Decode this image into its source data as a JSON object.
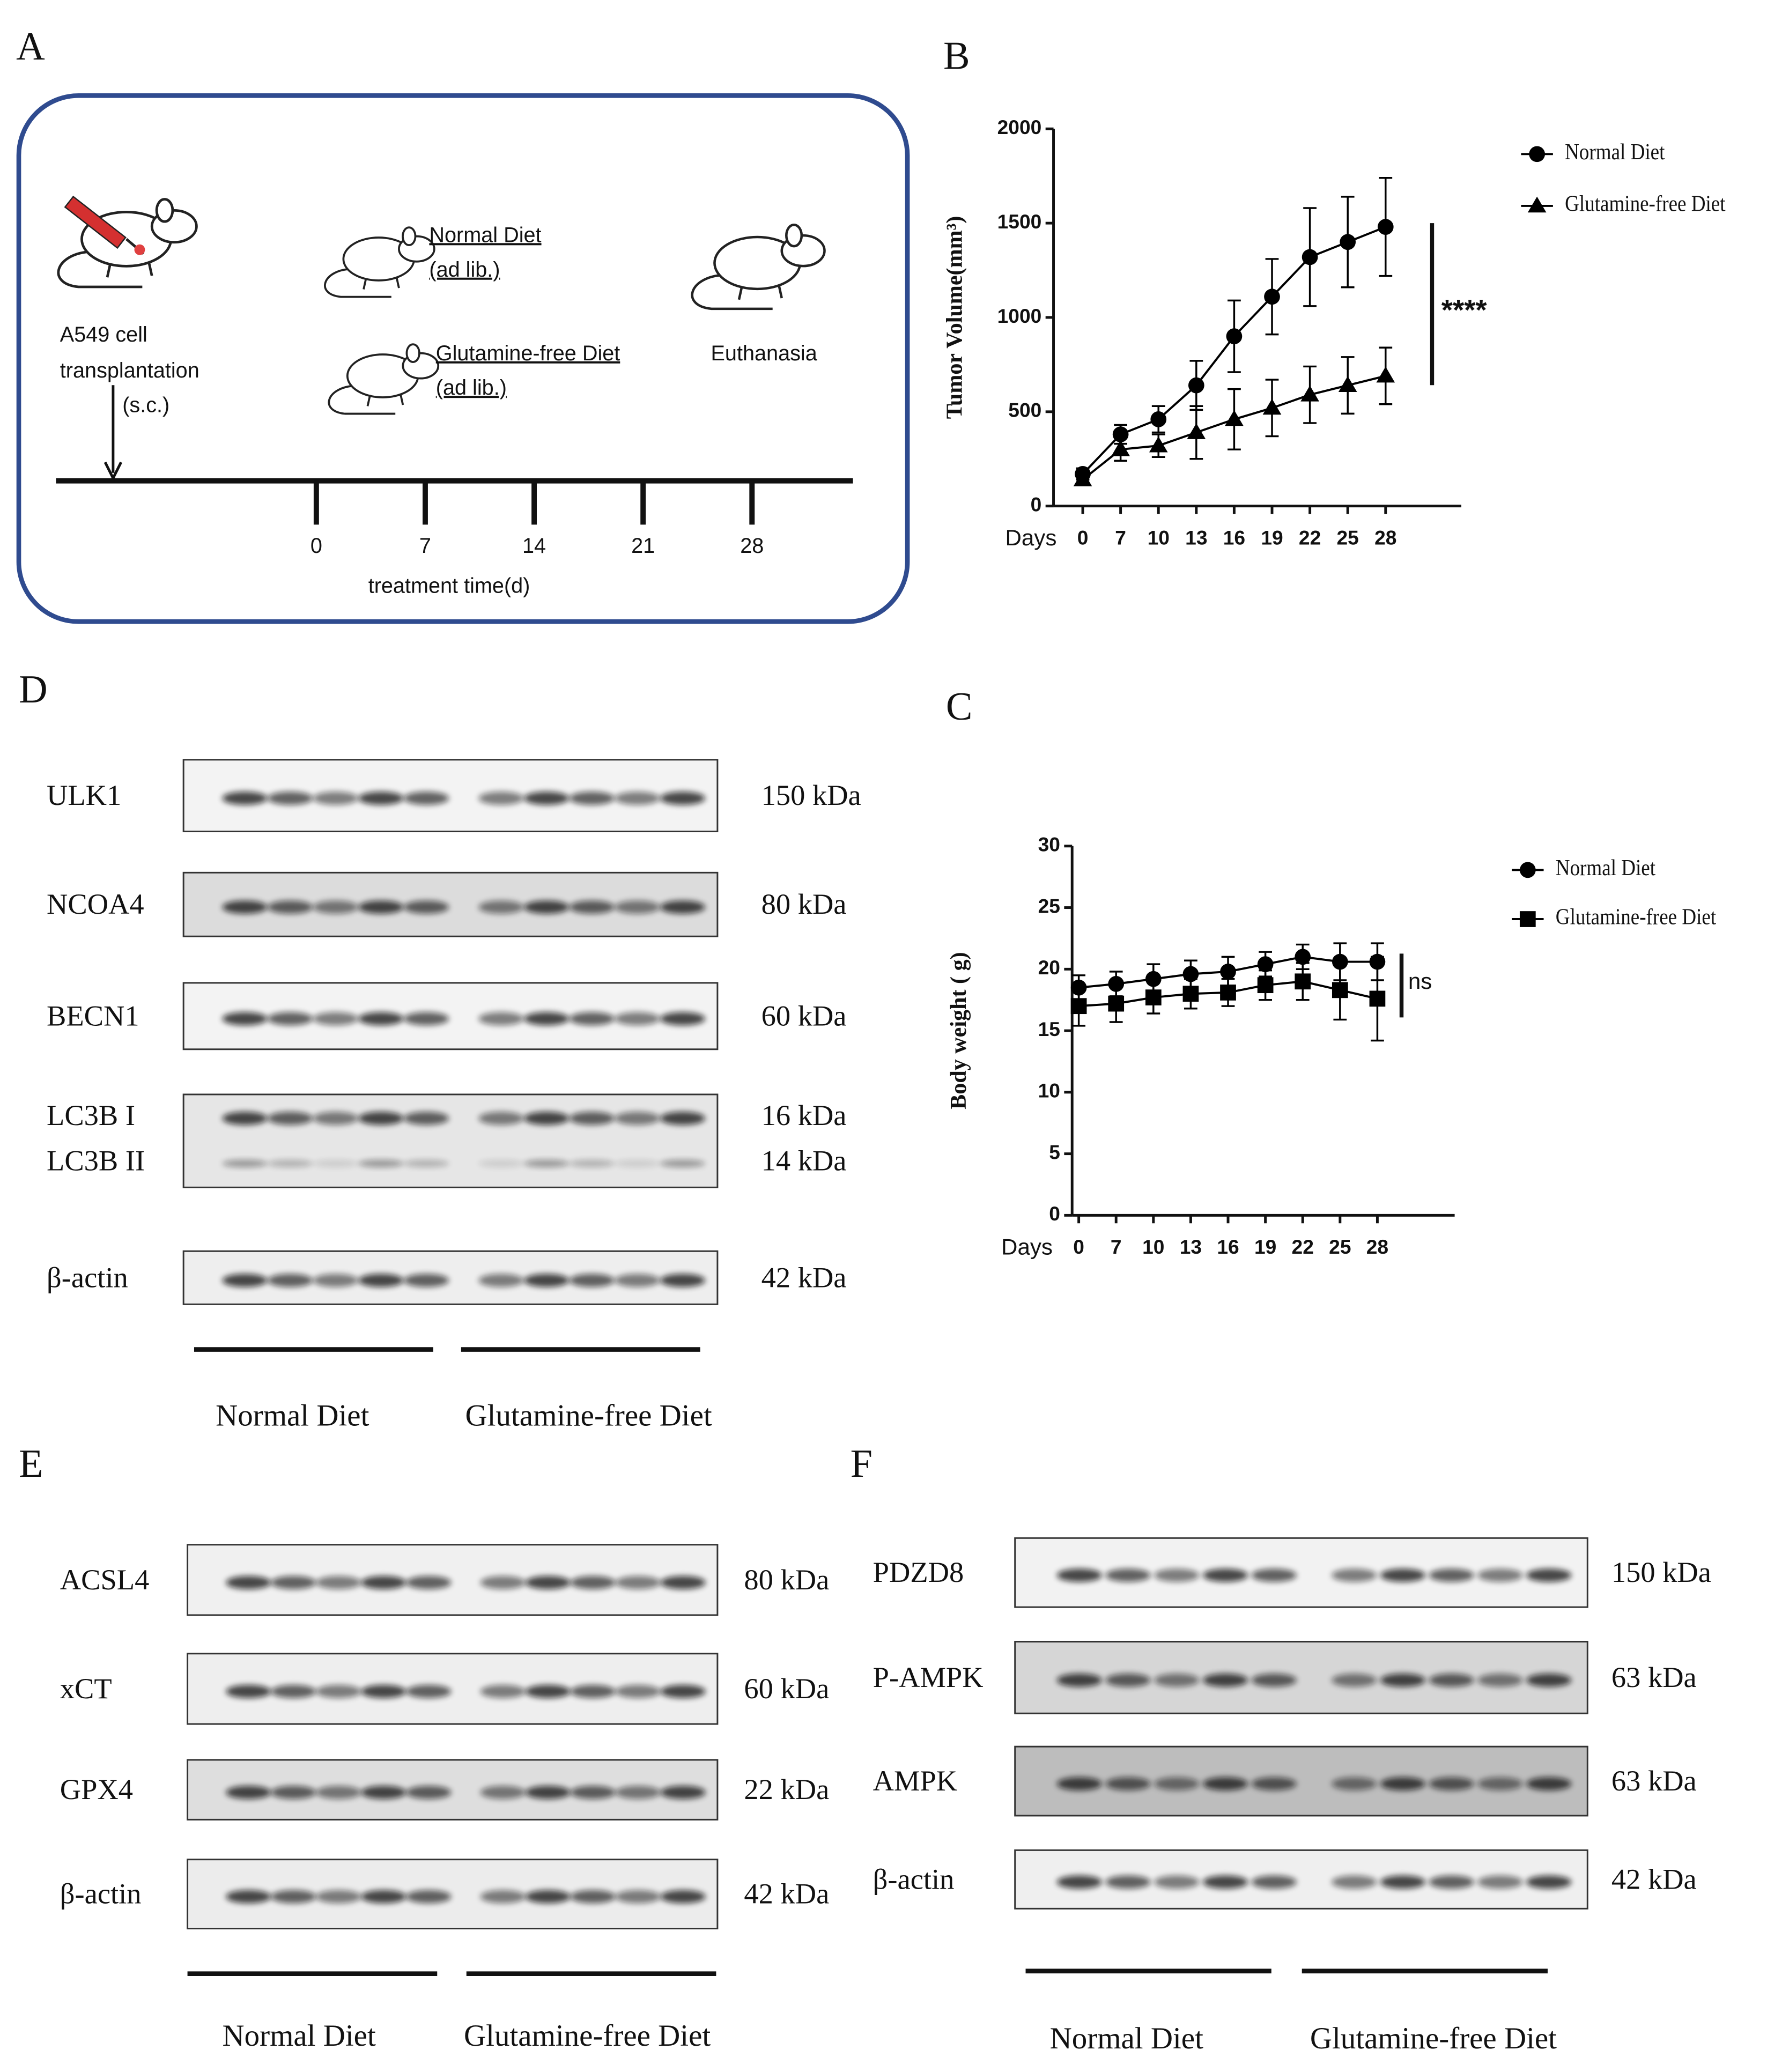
{
  "panel_labels": [
    "A",
    "B",
    "C",
    "D",
    "E",
    "F"
  ],
  "diagram": {
    "cell_line": "A549 cell",
    "transplant": "transplantation",
    "route": "(s.c.)",
    "groups": [
      {
        "name": "Normal Diet",
        "note": "(ad lib.)"
      },
      {
        "name": "Glutamine-free Diet",
        "note": "(ad lib.)"
      }
    ],
    "endpoint": "Euthanasia",
    "timeline_ticks": [
      "0",
      "7",
      "14",
      "21",
      "28"
    ],
    "timeline_label": "treatment time(d)"
  },
  "chart_data": [
    {
      "type": "line",
      "x_label": "Days",
      "y_label": "Tumor Volume(mm³)",
      "categories": [
        "0",
        "7",
        "10",
        "13",
        "16",
        "19",
        "22",
        "25",
        "28"
      ],
      "ylim": [
        0,
        2000
      ],
      "yticks": [
        0,
        500,
        1000,
        1500,
        2000
      ],
      "series": [
        {
          "name": "Normal Diet",
          "color": "#000000",
          "marker": "circle",
          "values": [
            170,
            380,
            460,
            640,
            900,
            1110,
            1320,
            1400,
            1480
          ],
          "errors": [
            30,
            50,
            70,
            130,
            190,
            200,
            260,
            240,
            260
          ]
        },
        {
          "name": "Glutamine-free Diet",
          "color": "#000000",
          "marker": "triangle",
          "values": [
            140,
            300,
            320,
            390,
            460,
            520,
            590,
            640,
            690
          ],
          "errors": [
            20,
            60,
            60,
            140,
            160,
            150,
            150,
            150,
            150
          ]
        }
      ],
      "annotation": "****"
    },
    {
      "type": "line",
      "x_label": "Days",
      "y_label": "Body weight ( g)",
      "categories": [
        "0",
        "7",
        "10",
        "13",
        "16",
        "19",
        "22",
        "25",
        "28"
      ],
      "ylim": [
        0,
        30
      ],
      "yticks": [
        0,
        5,
        10,
        15,
        20,
        25,
        30
      ],
      "series": [
        {
          "name": "Normal Diet",
          "color": "#000000",
          "marker": "circle",
          "values": [
            18.5,
            18.8,
            19.2,
            19.6,
            19.8,
            20.4,
            21.0,
            20.6,
            20.6
          ],
          "errors": [
            1.0,
            1.0,
            1.2,
            1.1,
            1.2,
            1.0,
            1.0,
            1.5,
            1.5
          ]
        },
        {
          "name": "Glutamine-free Diet",
          "color": "#000000",
          "marker": "square",
          "values": [
            17.0,
            17.2,
            17.7,
            18.0,
            18.1,
            18.7,
            19.0,
            18.3,
            17.6
          ],
          "errors": [
            1.6,
            1.5,
            1.3,
            1.2,
            1.1,
            1.2,
            1.5,
            2.4,
            3.4
          ]
        }
      ],
      "annotation": "ns"
    }
  ],
  "blots": [
    {
      "rows": [
        [
          {
            "label": "ULK1",
            "size": "150 kDa"
          }
        ],
        [
          {
            "label": "NCOA4",
            "size": "80 kDa"
          }
        ],
        [
          {
            "label": "BECN1",
            "size": "60 kDa"
          }
        ],
        [
          {
            "label": "LC3B I",
            "size": "16 kDa"
          },
          {
            "label": "LC3B II",
            "size": "14 kDa"
          }
        ],
        [
          {
            "label": "β-actin",
            "size": "42 kDa"
          }
        ]
      ],
      "groups": [
        "Normal Diet",
        "Glutamine-free Diet"
      ]
    },
    {
      "rows": [
        [
          {
            "label": "ACSL4",
            "size": "80 kDa"
          }
        ],
        [
          {
            "label": "xCT",
            "size": "60 kDa"
          }
        ],
        [
          {
            "label": "GPX4",
            "size": "22 kDa"
          }
        ],
        [
          {
            "label": "β-actin",
            "size": "42 kDa"
          }
        ]
      ],
      "groups": [
        "Normal Diet",
        "Glutamine-free Diet"
      ]
    },
    {
      "rows": [
        [
          {
            "label": "PDZD8",
            "size": "150 kDa"
          }
        ],
        [
          {
            "label": "P-AMPK",
            "size": "63 kDa"
          }
        ],
        [
          {
            "label": "AMPK",
            "size": "63 kDa"
          }
        ],
        [
          {
            "label": "β-actin",
            "size": "42 kDa"
          }
        ]
      ],
      "groups": [
        "Normal Diet",
        "Glutamine-free Diet"
      ]
    }
  ]
}
